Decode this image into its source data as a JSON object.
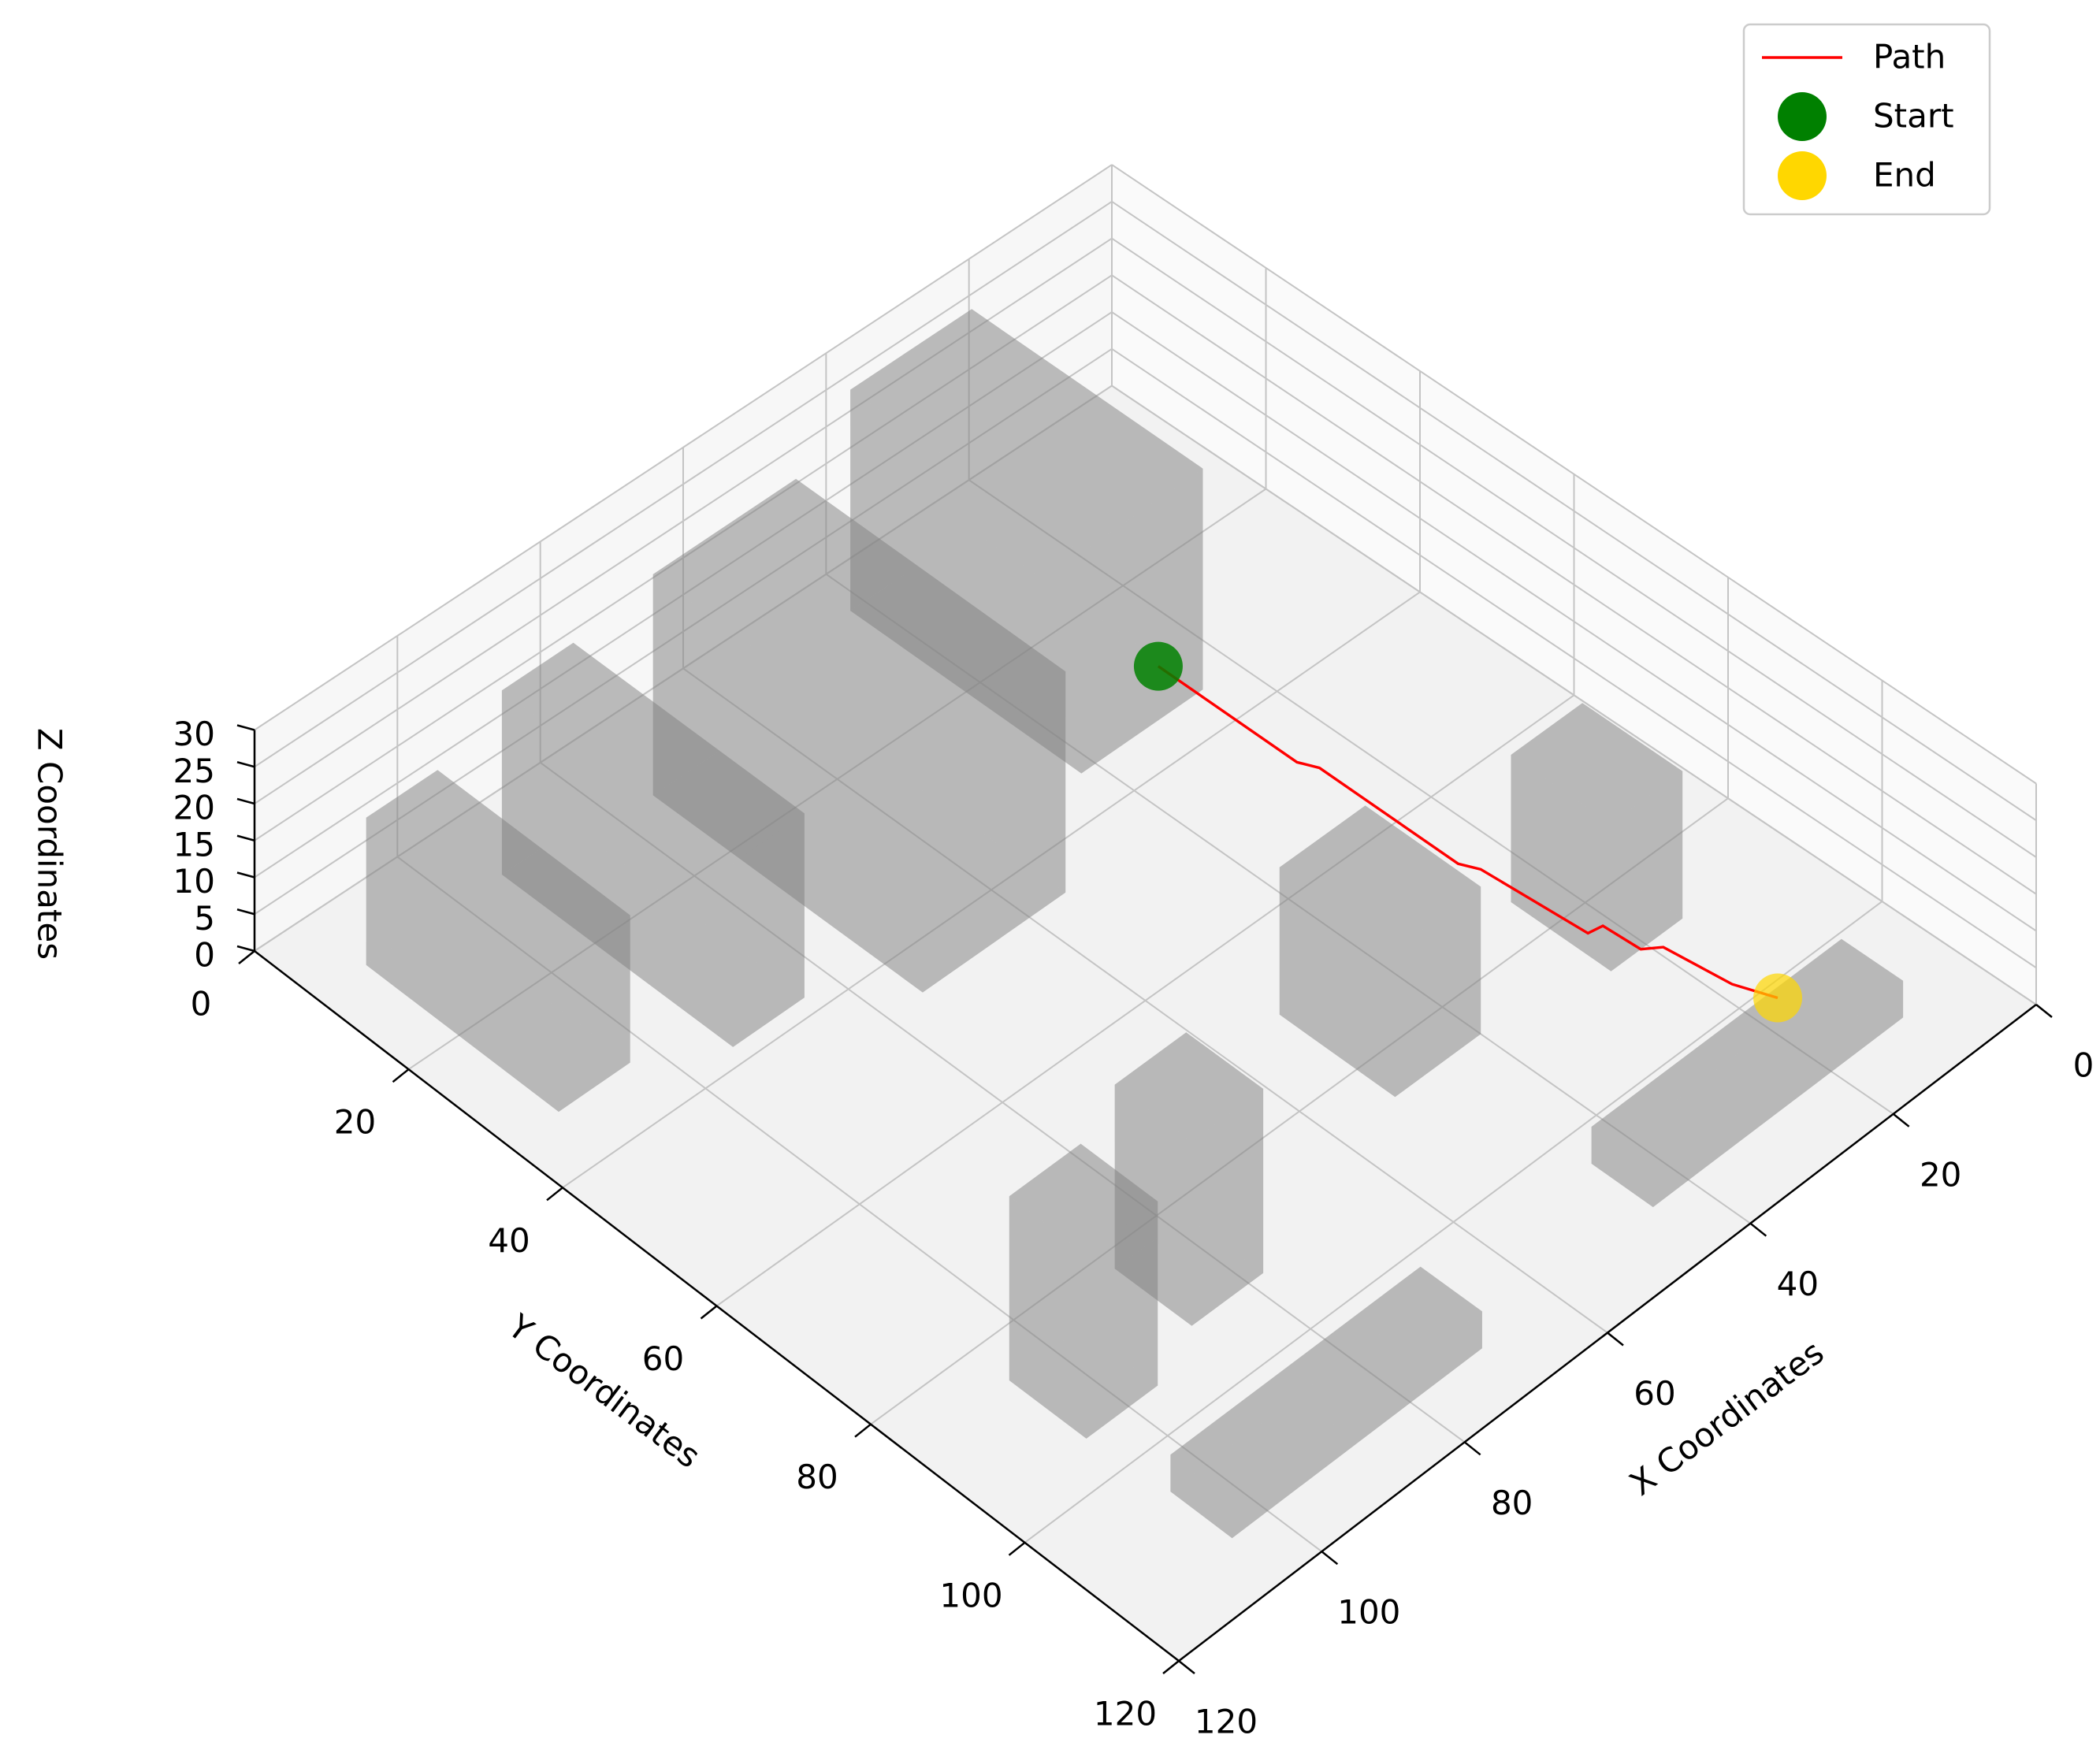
{
  "chart_data": {
    "type": "path3d",
    "xlabel": "X Coordinates",
    "ylabel": "Y Coordinates",
    "zlabel": "Z Coordinates",
    "xlim": [
      0,
      120
    ],
    "ylim": [
      0,
      120
    ],
    "zlim": [
      0,
      30
    ],
    "xticks": [
      0,
      20,
      40,
      60,
      80,
      100,
      120
    ],
    "yticks": [
      0,
      20,
      40,
      60,
      80,
      100,
      120
    ],
    "zticks": [
      0,
      5,
      10,
      15,
      20,
      25,
      30
    ],
    "grid": true,
    "legend": "upper right",
    "obstacle_color": "#808080",
    "obstacles": [
      {
        "x": [
          103,
          113
        ],
        "y": [
          8,
          33
        ],
        "z": [
          0,
          20
        ]
      },
      {
        "x": [
          84,
          94
        ],
        "y": [
          8,
          38
        ],
        "z": [
          0,
          25
        ]
      },
      {
        "x": [
          55,
          75
        ],
        "y": [
          10,
          45
        ],
        "z": [
          0,
          30
        ]
      },
      {
        "x": [
          25,
          42
        ],
        "y": [
          5,
          35
        ],
        "z": [
          0,
          30
        ]
      },
      {
        "x": [
          15,
          25
        ],
        "y": [
          75,
          88
        ],
        "z": [
          0,
          20
        ]
      },
      {
        "x": [
          40,
          52
        ],
        "y": [
          70,
          85
        ],
        "z": [
          0,
          20
        ]
      },
      {
        "x": [
          10,
          45
        ],
        "y": [
          104,
          112
        ],
        "z": [
          0,
          5
        ]
      },
      {
        "x": [
          70,
          105
        ],
        "y": [
          105,
          113
        ],
        "z": [
          0,
          5
        ]
      },
      {
        "x": [
          78,
          88
        ],
        "y": [
          82,
          92
        ],
        "z": [
          0,
          25
        ]
      },
      {
        "x": [
          96,
          106
        ],
        "y": [
          85,
          95
        ],
        "z": [
          0,
          25
        ]
      }
    ],
    "series": [
      {
        "name": "Path",
        "color": "#ff0000",
        "style": "line",
        "x": [
          28,
          28,
          27,
          27,
          26,
          25,
          24,
          23,
          22,
          21,
          20
        ],
        "y": [
          32,
          50,
          52,
          70,
          72,
          85,
          86,
          90,
          92,
          100,
          105
        ],
        "z": [
          3,
          3,
          3,
          3,
          3,
          3,
          4,
          3,
          4,
          4,
          5
        ]
      },
      {
        "name": "Start",
        "color": "#008000",
        "style": "point",
        "x": [
          28
        ],
        "y": [
          32
        ],
        "z": [
          3
        ]
      },
      {
        "name": "End",
        "color": "#ffd700",
        "style": "point",
        "x": [
          20
        ],
        "y": [
          105
        ],
        "z": [
          5
        ]
      }
    ]
  }
}
